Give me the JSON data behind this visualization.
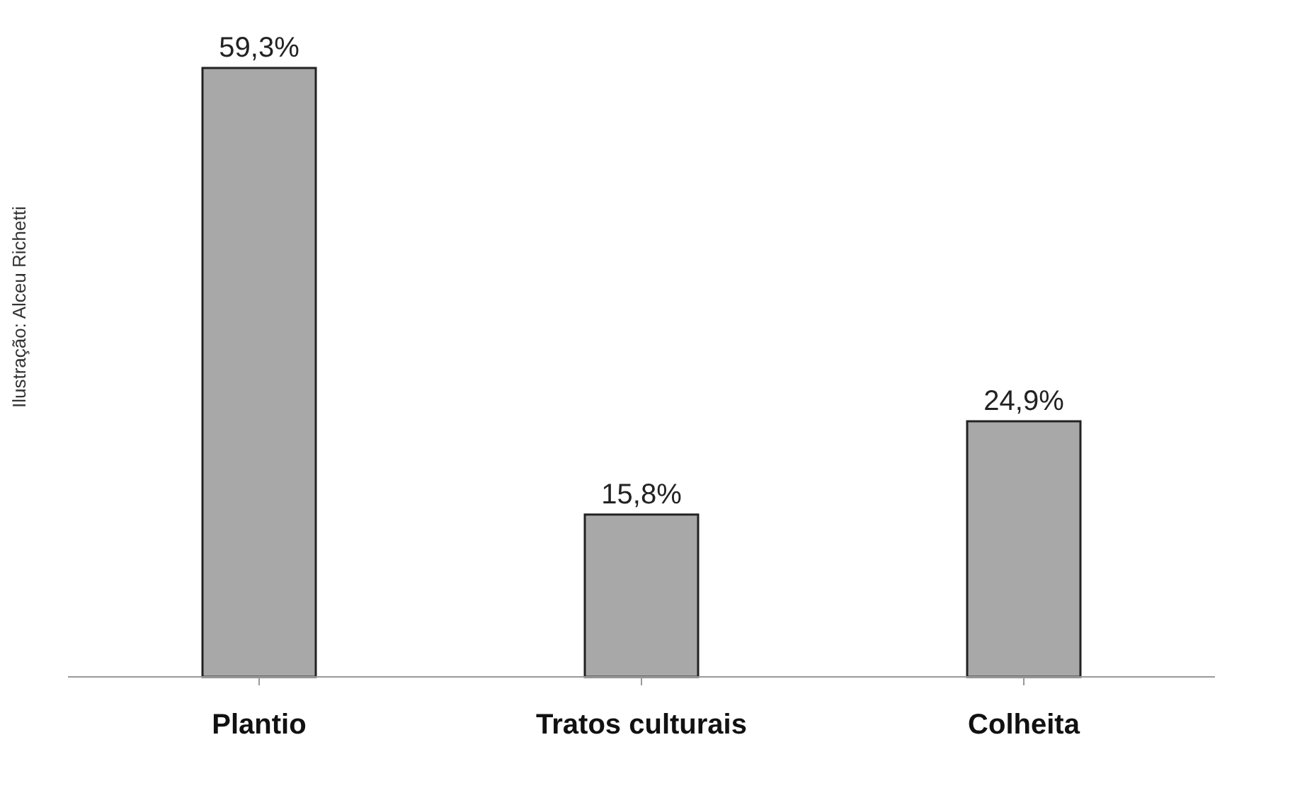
{
  "chart_data": {
    "type": "bar",
    "categories": [
      "Plantio",
      "Tratos culturais",
      "Colheita"
    ],
    "values": [
      59.3,
      15.8,
      24.9
    ],
    "value_labels": [
      "59,3%",
      "15,8%",
      "24,9%"
    ],
    "color": "#a8a8a8",
    "annotations": [
      "Ilustração: Alceu Richetti"
    ],
    "grid": false,
    "legend": false
  }
}
